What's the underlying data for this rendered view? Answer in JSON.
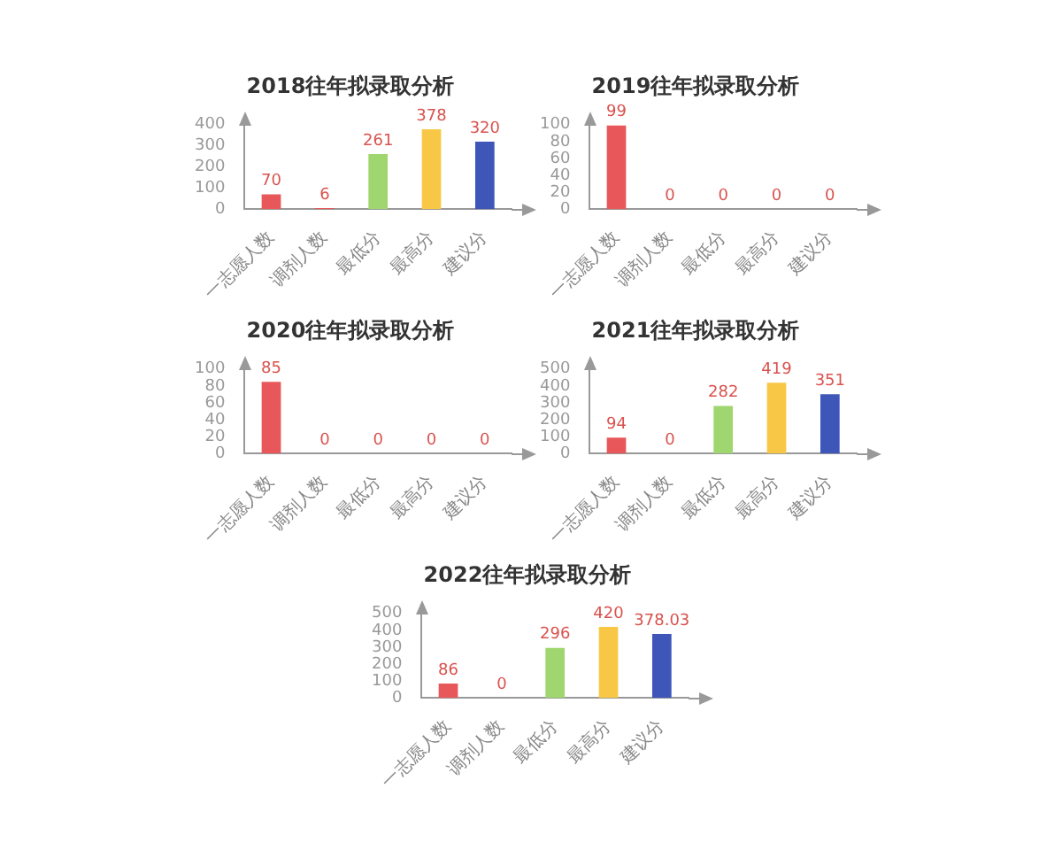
{
  "chart_data": [
    {
      "type": "bar",
      "title": "2018往年拟录取分析",
      "categories": [
        "一志愿人数",
        "调剂人数",
        "最低分",
        "最高分",
        "建议分"
      ],
      "values": [
        70,
        6,
        261,
        378,
        320
      ],
      "colors": [
        "#e8585a",
        "#e8585a",
        "#9fd66f",
        "#f8c746",
        "#3d56b8"
      ],
      "ylim": [
        0,
        400
      ],
      "yticks": [
        0,
        100,
        200,
        300,
        400
      ],
      "data_labels": true
    },
    {
      "type": "bar",
      "title": "2019往年拟录取分析",
      "categories": [
        "一志愿人数",
        "调剂人数",
        "最低分",
        "最高分",
        "建议分"
      ],
      "values": [
        99,
        0,
        0,
        0,
        0
      ],
      "colors": [
        "#e8585a",
        "#e8585a",
        "#9fd66f",
        "#f8c746",
        "#3d56b8"
      ],
      "ylim": [
        0,
        100
      ],
      "yticks": [
        0,
        20,
        40,
        60,
        80,
        100
      ],
      "data_labels": true
    },
    {
      "type": "bar",
      "title": "2020往年拟录取分析",
      "categories": [
        "一志愿人数",
        "调剂人数",
        "最低分",
        "最高分",
        "建议分"
      ],
      "values": [
        85,
        0,
        0,
        0,
        0
      ],
      "colors": [
        "#e8585a",
        "#e8585a",
        "#9fd66f",
        "#f8c746",
        "#3d56b8"
      ],
      "ylim": [
        0,
        100
      ],
      "yticks": [
        0,
        20,
        40,
        60,
        80,
        100
      ],
      "data_labels": true
    },
    {
      "type": "bar",
      "title": "2021往年拟录取分析",
      "categories": [
        "一志愿人数",
        "调剂人数",
        "最低分",
        "最高分",
        "建议分"
      ],
      "values": [
        94,
        0,
        282,
        419,
        351
      ],
      "colors": [
        "#e8585a",
        "#e8585a",
        "#9fd66f",
        "#f8c746",
        "#3d56b8"
      ],
      "ylim": [
        0,
        500
      ],
      "yticks": [
        0,
        100,
        200,
        300,
        400,
        500
      ],
      "data_labels": true
    },
    {
      "type": "bar",
      "title": "2022往年拟录取分析",
      "categories": [
        "一志愿人数",
        "调剂人数",
        "最低分",
        "最高分",
        "建议分"
      ],
      "values": [
        86,
        0,
        296,
        420,
        378.03
      ],
      "colors": [
        "#e8585a",
        "#e8585a",
        "#9fd66f",
        "#f8c746",
        "#3d56b8"
      ],
      "ylim": [
        0,
        500
      ],
      "yticks": [
        0,
        100,
        200,
        300,
        400,
        500
      ],
      "data_labels": true
    }
  ]
}
